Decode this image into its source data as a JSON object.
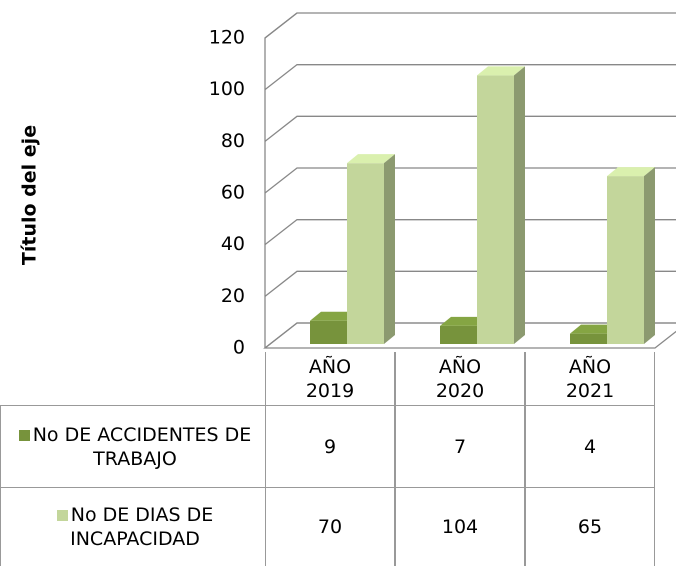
{
  "chart_data": {
    "type": "bar3d",
    "y_axis_title": "Título del eje",
    "categories": [
      "AÑO 2019",
      "AÑO 2020",
      "AÑO 2021"
    ],
    "series": [
      {
        "name": "No DE ACCIDENTES DE TRABAJO",
        "color": "#77933c",
        "values": [
          9,
          7,
          4
        ]
      },
      {
        "name": "No DE DIAS DE INCAPACIDAD",
        "color": "#c3d69b",
        "values": [
          70,
          104,
          65
        ]
      }
    ],
    "ylim": [
      0,
      120
    ],
    "yticks": [
      0,
      20,
      40,
      60,
      80,
      100,
      120
    ],
    "grid": true
  }
}
